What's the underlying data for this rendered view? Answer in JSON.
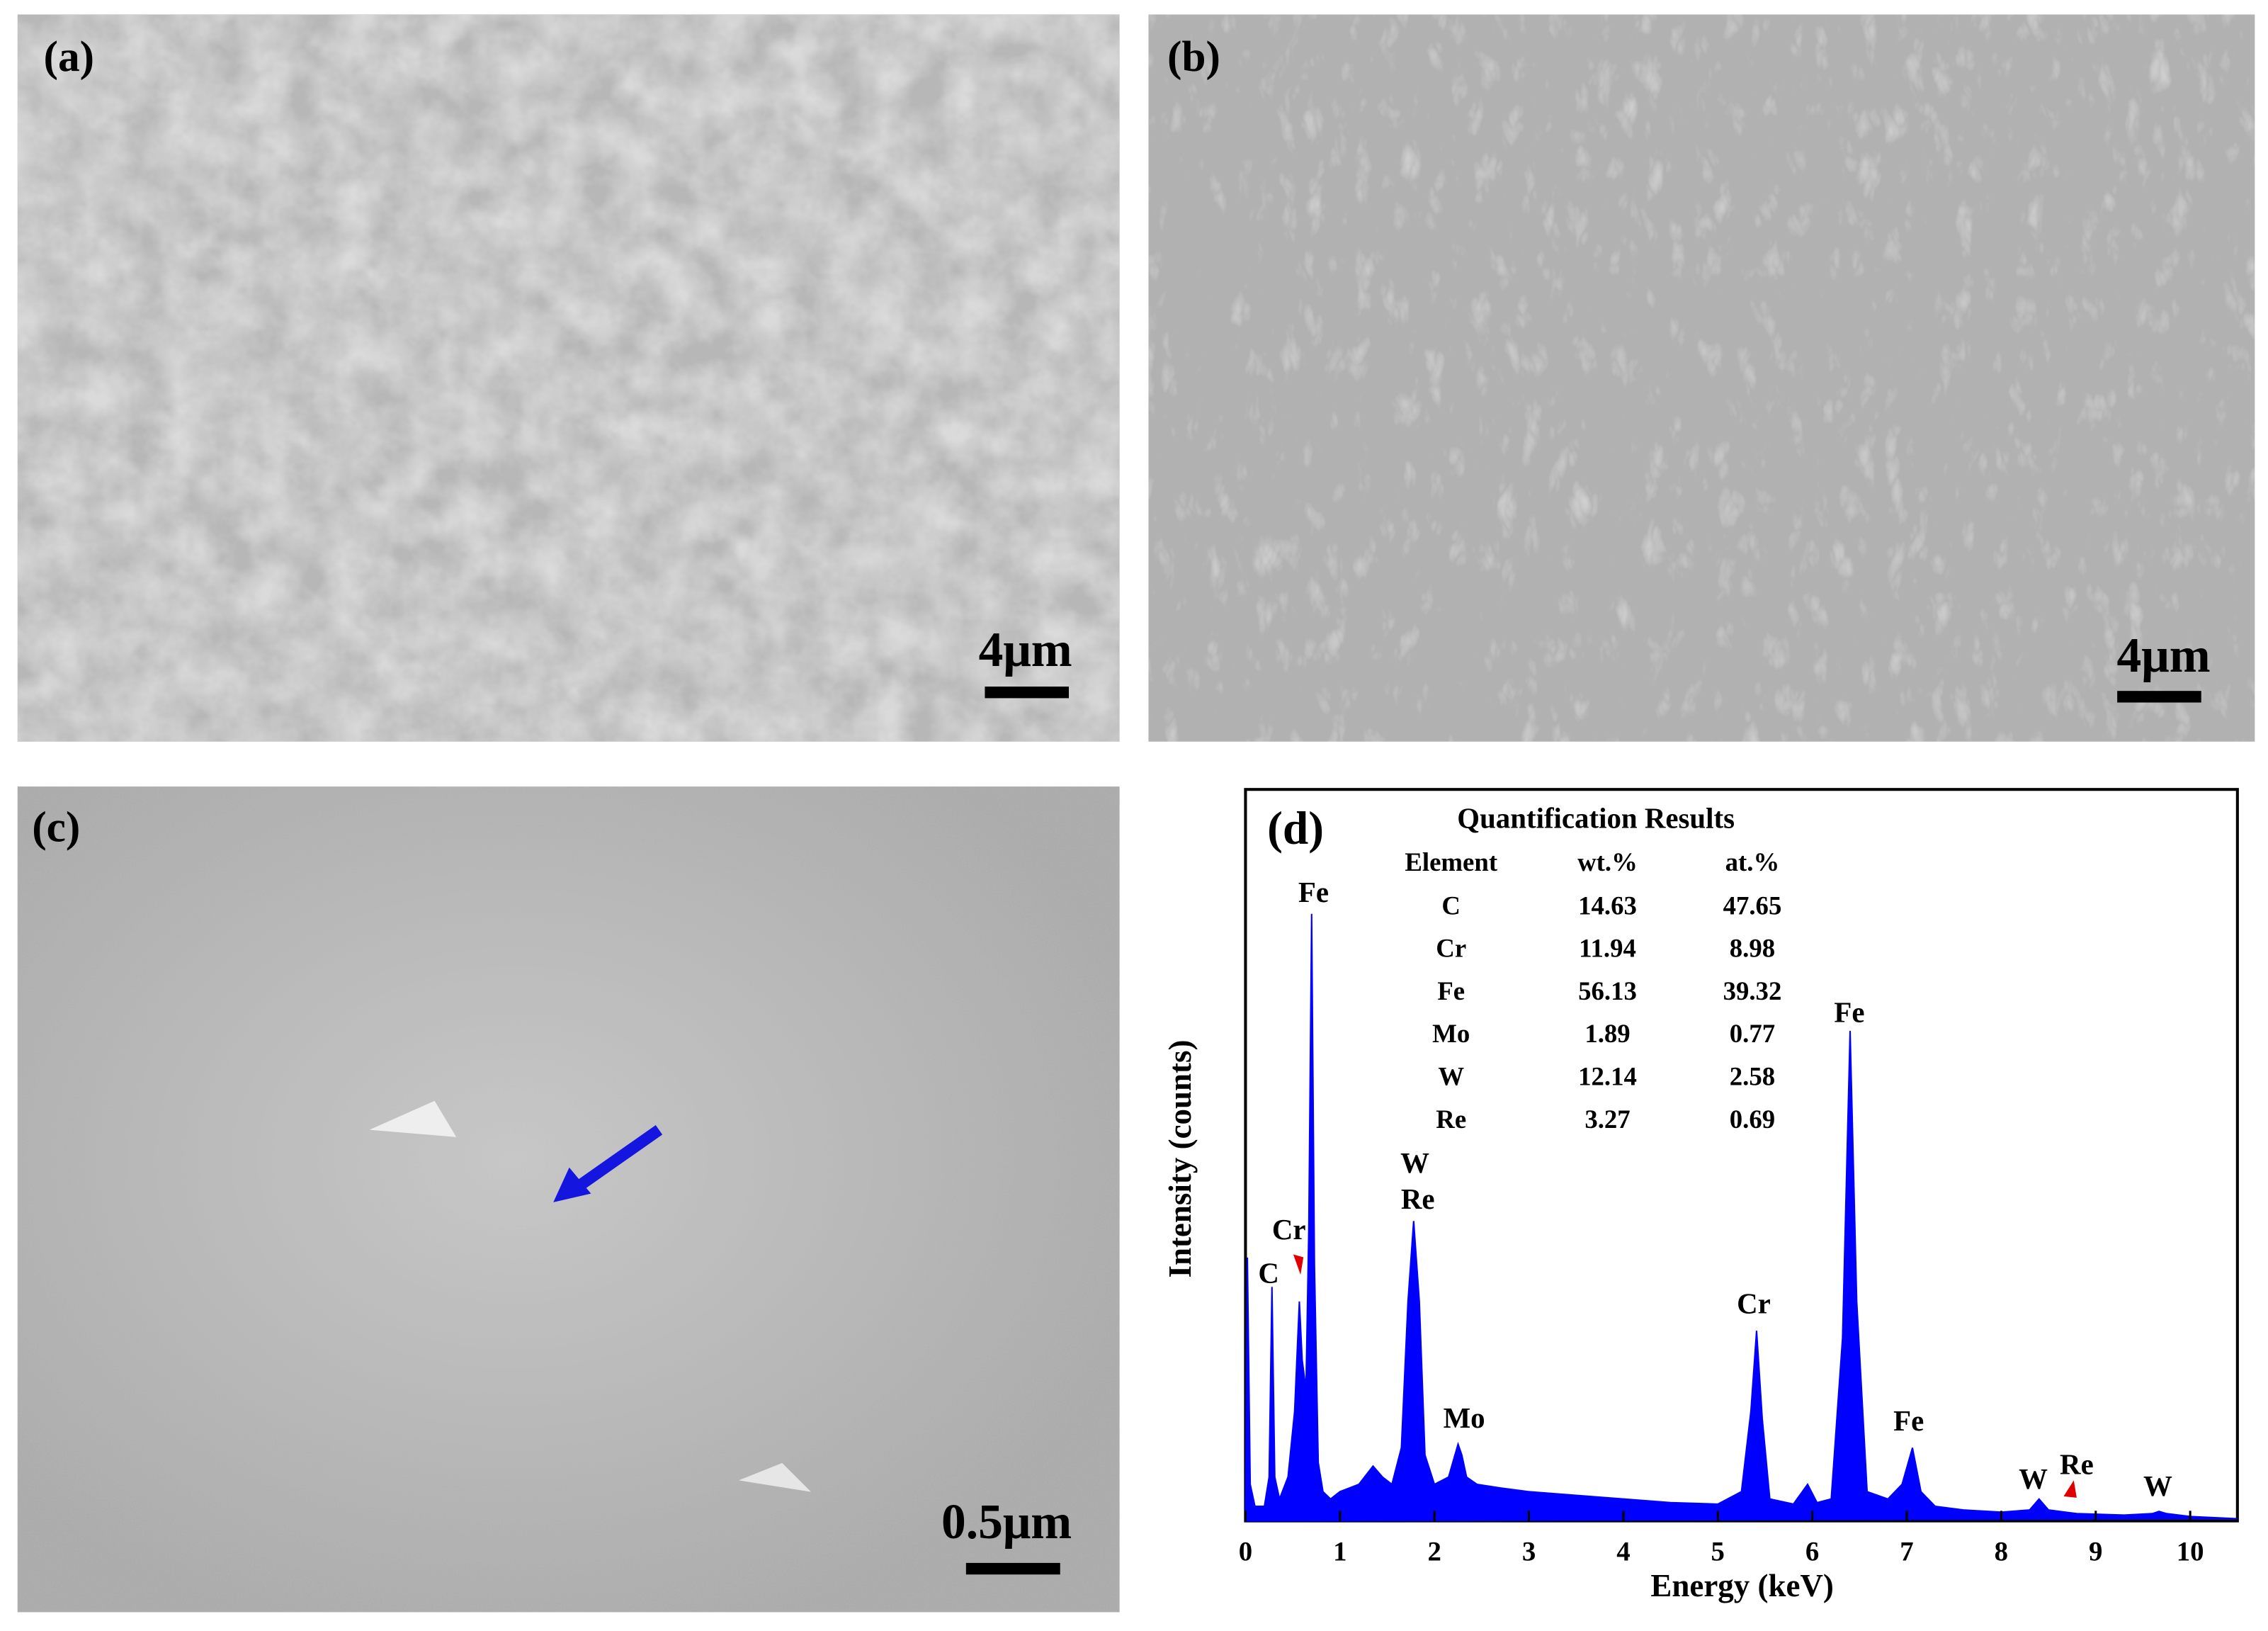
{
  "panels": [
    {
      "label": "(a)",
      "scale_bar": "4μm"
    },
    {
      "label": "(b)",
      "scale_bar": "4μm"
    },
    {
      "label": "(c)",
      "scale_bar": "0.5μm"
    }
  ],
  "chart_data": {
    "type": "area",
    "panel_label": "(d)",
    "x_label": "Energy (keV)",
    "y_label": "Intensity (counts)",
    "color": "#0000ff",
    "x": [
      0,
      0.02,
      0.05,
      0.1,
      0.2,
      0.25,
      0.28,
      0.31,
      0.36,
      0.45,
      0.52,
      0.57,
      0.6,
      0.64,
      0.67,
      0.7,
      0.73,
      0.77,
      0.82,
      0.9,
      1.0,
      1.2,
      1.35,
      1.45,
      1.55,
      1.65,
      1.72,
      1.78,
      1.84,
      1.9,
      2.0,
      2.15,
      2.25,
      2.29,
      2.34,
      2.45,
      2.7,
      3.0,
      3.5,
      4.0,
      4.5,
      5.0,
      5.25,
      5.35,
      5.41,
      5.47,
      5.55,
      5.8,
      5.95,
      6.05,
      6.2,
      6.32,
      6.4,
      6.47,
      6.58,
      6.8,
      6.95,
      7.06,
      7.15,
      7.3,
      7.6,
      8.0,
      8.3,
      8.4,
      8.5,
      8.8,
      9.3,
      9.6,
      9.67,
      9.75,
      10.0,
      10.5
    ],
    "values": [
      0,
      36,
      5,
      2,
      2,
      6,
      32,
      6,
      3,
      6,
      15,
      30,
      22,
      18,
      40,
      83,
      35,
      8,
      4,
      3,
      4,
      5,
      7.5,
      6,
      5,
      10,
      30,
      41,
      30,
      9,
      5,
      6,
      10.5,
      9,
      6,
      5,
      4.5,
      4,
      3.5,
      3,
      2.5,
      2.3,
      4,
      15,
      26,
      14,
      3,
      2.3,
      5,
      2.5,
      3,
      25,
      67,
      30,
      4,
      3,
      5,
      10,
      4,
      2,
      1.5,
      1.2,
      1.5,
      3,
      1.5,
      1,
      0.8,
      1,
      1.3,
      1,
      0.6,
      0.3
    ],
    "xlim": [
      0,
      10.5
    ],
    "ylim": [
      0,
      100
    ],
    "xticks": [
      0,
      1,
      2,
      3,
      4,
      5,
      6,
      7,
      8,
      9,
      10
    ],
    "peak_labels": [
      "Fe",
      "Cr",
      "C",
      "W",
      "Re",
      "Mo",
      "Cr",
      "Fe",
      "Fe",
      "W",
      "Re",
      "W"
    ],
    "table": {
      "title": "Quantification Results",
      "header": [
        "Element",
        "wt.%",
        "at.%"
      ],
      "rows": [
        [
          "C",
          "14.63",
          "47.65"
        ],
        [
          "Cr",
          "11.94",
          "8.98"
        ],
        [
          "Fe",
          "56.13",
          "39.32"
        ],
        [
          "Mo",
          "1.89",
          "0.77"
        ],
        [
          "W",
          "12.14",
          "2.58"
        ],
        [
          "Re",
          "3.27",
          "0.69"
        ]
      ]
    }
  }
}
